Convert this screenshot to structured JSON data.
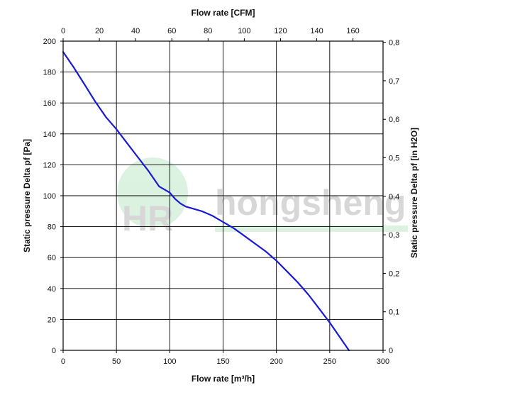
{
  "chart_data": {
    "type": "line",
    "xlabel": "Flow rate [m³/h]",
    "x2label": "Flow rate [CFM]",
    "ylabel": "Static pressure Delta pf [Pa]",
    "y2label": "Static pressure Delta pf [in H2O]",
    "xlim": [
      0,
      300
    ],
    "ylim": [
      0,
      200
    ],
    "x2lim": [
      0,
      176.6
    ],
    "y2lim": [
      0,
      0.803
    ],
    "x_ticks": [
      "0",
      "50",
      "100",
      "150",
      "200",
      "250",
      "300"
    ],
    "y_ticks": [
      "0",
      "20",
      "40",
      "60",
      "80",
      "100",
      "120",
      "140",
      "160",
      "180",
      "200"
    ],
    "x2_ticks": [
      "0",
      "20",
      "40",
      "60",
      "80",
      "100",
      "120",
      "140",
      "160"
    ],
    "x2_tick_values": [
      0,
      20,
      40,
      60,
      80,
      100,
      120,
      140,
      160
    ],
    "y2_ticks": [
      "0",
      "0,1",
      "0,2",
      "0,3",
      "0,4",
      "0,5",
      "0,6",
      "0,7",
      "0,8"
    ],
    "y2_tick_values": [
      0,
      0.1,
      0.2,
      0.3,
      0.4,
      0.5,
      0.6,
      0.7,
      0.8
    ],
    "grid": true,
    "series": [
      {
        "color": "#1a1ad6",
        "x": [
          0,
          10,
          20,
          30,
          40,
          50,
          60,
          70,
          80,
          90,
          100,
          105,
          110,
          115,
          120,
          130,
          140,
          150,
          160,
          170,
          180,
          190,
          200,
          210,
          220,
          230,
          240,
          250,
          260,
          268
        ],
        "y": [
          193,
          183,
          172,
          161,
          151,
          143,
          134,
          125,
          116,
          106,
          102,
          98,
          95,
          93,
          92,
          90,
          87,
          83,
          79,
          74,
          69,
          64,
          58,
          51,
          44,
          36,
          27,
          18,
          8,
          0
        ]
      }
    ]
  },
  "watermark": {
    "text": "hongsheng",
    "monogram": "HR",
    "color": "#2db34a"
  }
}
